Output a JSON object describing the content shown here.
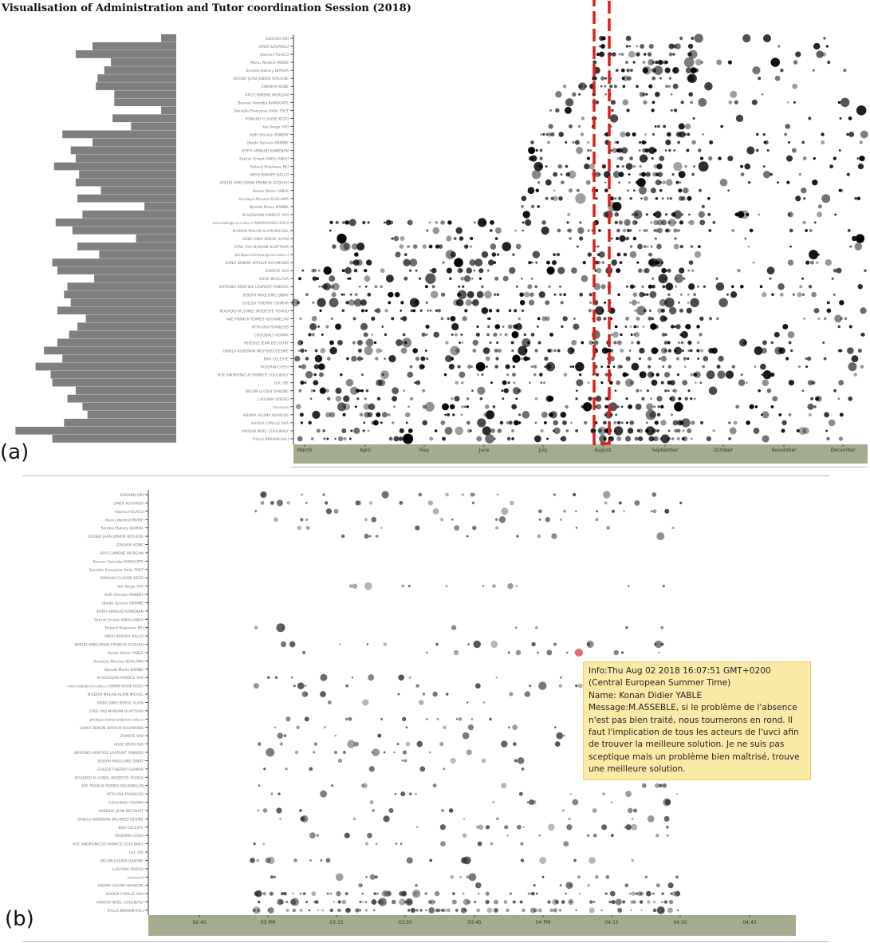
{
  "title": "Visualisation of Administration and Tutor coordination Session (2018)",
  "panel_a_label": "(a)",
  "panel_b_label": "(b)",
  "tooltip": {
    "info": "Info:Thu Aug 02 2018 16:07:51 GMT+0200",
    "tz": "(Central European Summer Time)",
    "name": "Name: Konan Didier YABLE",
    "message": "Message:M.ASSEBLE, si le problème de l'absence n'est pas bien traité, nous tournerons en rond. Il faut l'implication de tous les acteurs de l'uvci afin de trouver la meilleure solution. Je ne suis pas sceptique mais un problème bien maîtrisé, trouve une meilleure solution."
  },
  "colors": {
    "axis_band": "#a3ac8e",
    "bar": "#7f7f7f",
    "dot": "#000000",
    "highlight": "#e21b1b",
    "selected_dot": "#e86a6a"
  },
  "chart_data": [
    {
      "type": "scatter",
      "panel": "a",
      "x_ticks": [
        "March",
        "April",
        "May",
        "June",
        "July",
        "August",
        "September",
        "October",
        "November",
        "December"
      ],
      "highlight_tick": "August",
      "participants": [
        "EDGARD ORI",
        "OMER KOUAKOU",
        "Adama FOLACO",
        "Mariu Wedhid MORIE",
        "Sondee Bakary DIARRA",
        "DOGBO JEAN JUNIOR WOUEDE",
        "ZAKARIA KONE",
        "APO CHIMENE MORGAN",
        "Bernan Hamidja KAMAGATE",
        "Danielle Françoise Odile TRET",
        "PONAHO CLAUDE KEZO",
        "Yao Serge YAO",
        "Koffi Ghislain PANERY",
        "Obede Sylvain OBIMBE",
        "KOFFI ARNAUD KAMENAN",
        "Patrick Ernest ANOU-ANOU",
        "Roland Stéphane BEI",
        "ABOU BAKARY BALLO",
        "KOEUD AMELOMAN FRANCIS ACQUAH",
        "Konan Didier YABLE",
        "Soulaiye Moussa SOULAMA",
        "Djeneb Mvine BAMBE",
        "N'GUESSAN FABRICE YAO",
        "mon.kobi@uvci.edu.ci AMON KASSI HOLO",
        "N'ADON MALAN ALAIN MICHEL",
        "AGBA OWO SERGE ALAIN",
        "EPSE YAO MARIAM OUATTARA",
        "philippe.kimenui@uvci.edu.ci",
        "GONO DENON ARTHUR RICHMOND",
        "ZAMATE YAO",
        "AGGE BROU IDA",
        "BATIONO ARISTIDE LAURENT FABRICE",
        "JOSEPH MAGLOIRE DIBAY",
        "GOLEDI THIERRY GUIMAR",
        "KOUADIO N LIONEL MODESTE YOHOU",
        "AKE FRANCK ROMEO KOUAMELAN",
        "ATTA KRA FRANÇOIS",
        "COULIBALY ADAMA",
        "ASSEBLE JEAN DECOURT",
        "DABILA KOBENAN WILFRIED DESIRE",
        "BAH CELESTE",
        "YAGORIN COSSI",
        "N'IE ANDRONICUS FABRICE COULIBALY",
        "LUC DIE",
        "DELON LUCIEN DAKOBE",
        "LAGOINA DOSSO",
        "hounouli",
        "ADAMA ACUMA WANGOE",
        "AHOUA CYRILLE AKA",
        "YAKOHO NOEL COULIBALY",
        "SYLLA BRAHIM KALI"
      ],
      "bar_values": [
        0.09,
        0.5,
        0.6,
        0.39,
        0.43,
        0.47,
        0.48,
        0.37,
        0.37,
        0.09,
        0.38,
        0.27,
        0.68,
        0.5,
        0.63,
        0.6,
        0.73,
        0.58,
        0.6,
        0.45,
        0.59,
        0.19,
        0.56,
        0.72,
        0.62,
        0.24,
        0.59,
        0.46,
        0.74,
        0.71,
        0.49,
        0.65,
        0.67,
        0.63,
        0.71,
        0.54,
        0.59,
        0.64,
        0.71,
        0.79,
        0.68,
        0.84,
        0.75,
        0.74,
        0.6,
        0.65,
        0.56,
        0.53,
        0.67,
        0.96,
        0.74
      ]
    },
    {
      "type": "scatter",
      "panel": "b",
      "x_ticks": [
        "02:45",
        "03 PM",
        "03:15",
        "03:30",
        "03:45",
        "04 PM",
        "04:15",
        "04:30",
        "04:45"
      ],
      "participants_same_as_panel_a": true,
      "selected_point": {
        "participant": "Konan Didier YABLE",
        "time": "16:07:51"
      }
    }
  ]
}
